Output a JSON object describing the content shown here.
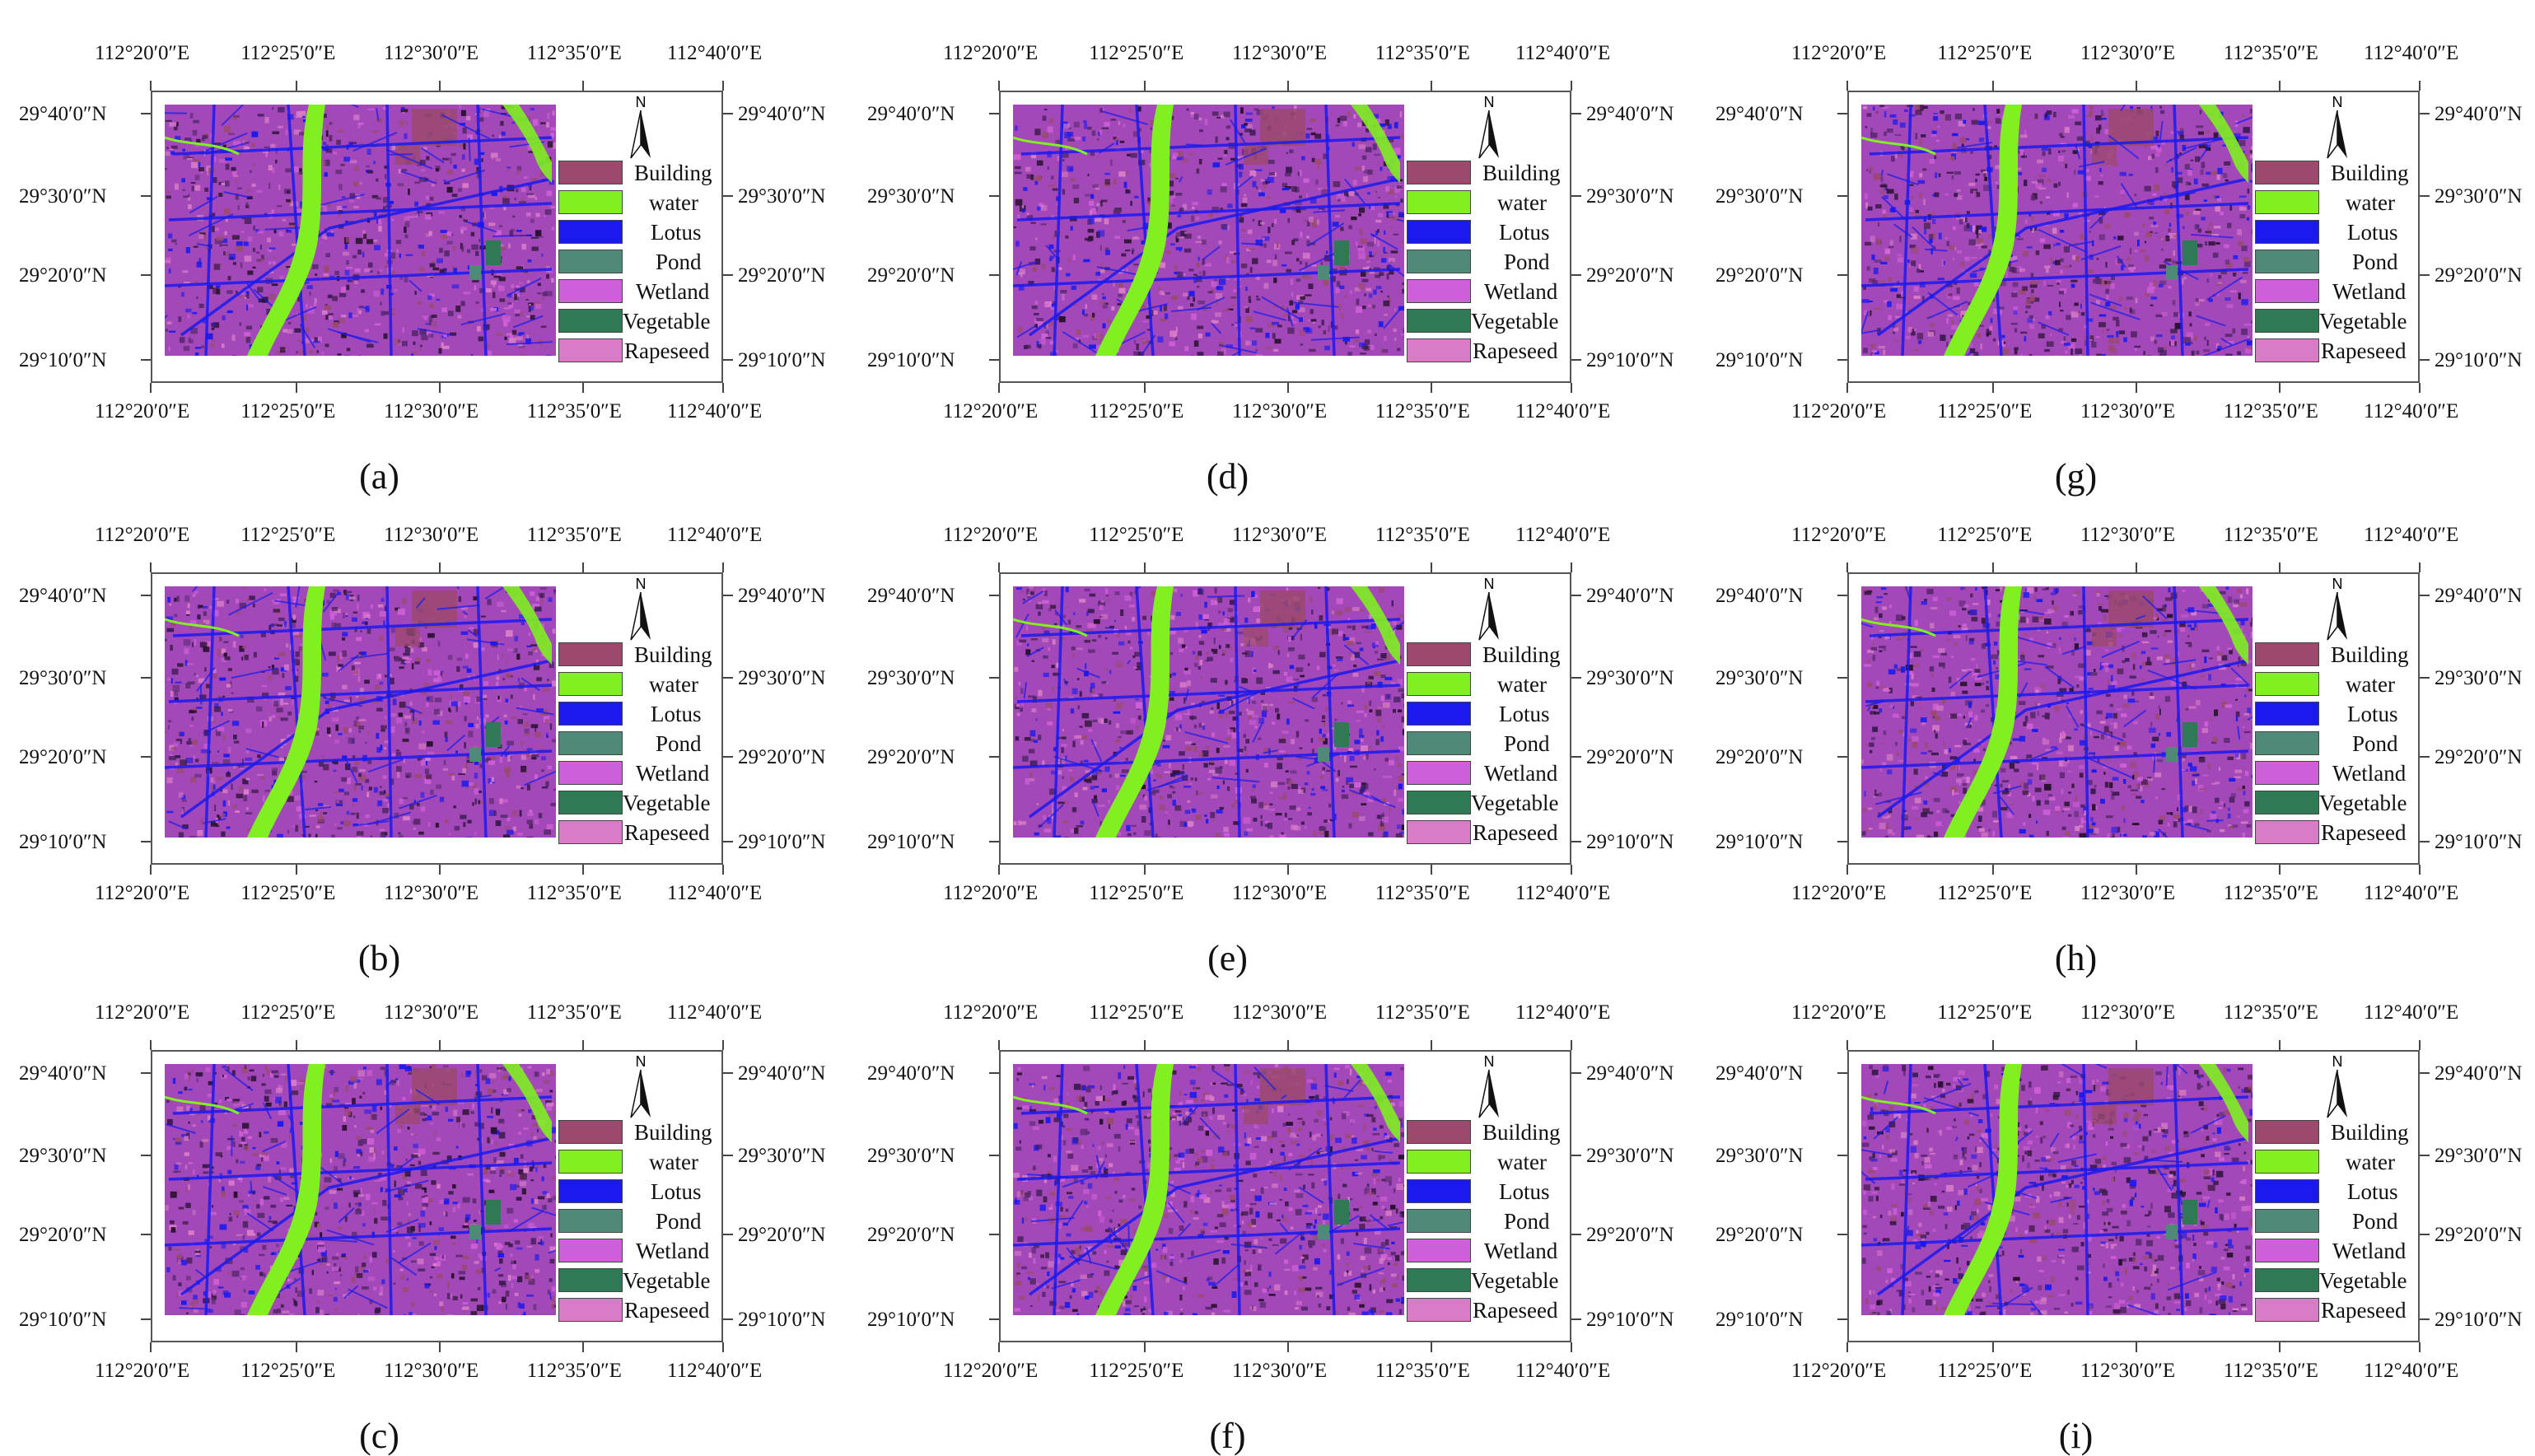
{
  "panels": [
    {
      "label": "(a)"
    },
    {
      "label": "(b)"
    },
    {
      "label": "(c)"
    },
    {
      "label": "(d)"
    },
    {
      "label": "(e)"
    },
    {
      "label": "(f)"
    },
    {
      "label": "(g)"
    },
    {
      "label": "(h)"
    },
    {
      "label": "(i)"
    }
  ],
  "lon_labels": [
    "112°20′0″E",
    "112°25′0″E",
    "112°30′0″E",
    "112°35′0″E",
    "112°40′0″E"
  ],
  "lat_labels": [
    "29°40′0″N",
    "29°30′0″N",
    "29°20′0″N",
    "29°10′0″N"
  ],
  "north_label": "N",
  "legend": [
    {
      "label": "Building",
      "color": "#9b4a6e"
    },
    {
      "label": "water",
      "color": "#80f020"
    },
    {
      "label": "Lotus",
      "color": "#1a1aee"
    },
    {
      "label": "Pond",
      "color": "#4f8a78"
    },
    {
      "label": "Wetland",
      "color": "#cf5fd8"
    },
    {
      "label": "Vegetable",
      "color": "#2f7a55"
    },
    {
      "label": "Rapeseed",
      "color": "#d97cc8"
    }
  ],
  "colors": {
    "base_magenta": "#a248b8",
    "dark_speckle": "#2a1230",
    "frame": "#555555"
  }
}
